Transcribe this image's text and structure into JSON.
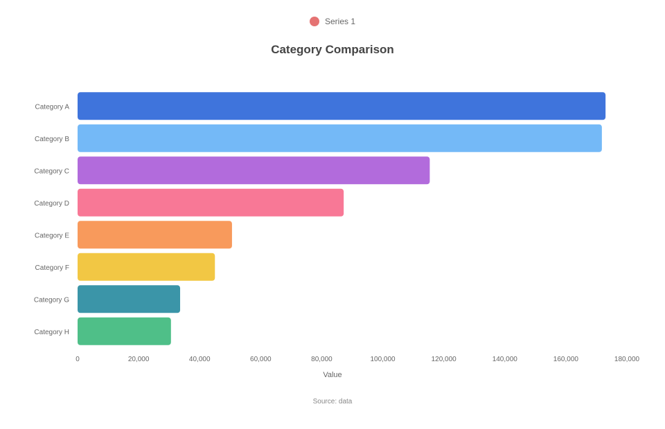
{
  "chart_data": {
    "type": "bar",
    "orientation": "horizontal",
    "title": "Category Comparison",
    "subtitle": "",
    "legend": {
      "label": "Series 1",
      "color": "#e57373",
      "position": "top"
    },
    "categories": [
      "Category A",
      "Category B",
      "Category C",
      "Category D",
      "Category E",
      "Category F",
      "Category G",
      "Category H"
    ],
    "values": [
      173000,
      171800,
      115400,
      87200,
      50600,
      45000,
      33600,
      30600
    ],
    "colors": [
      "#3f74dc",
      "#74b9f7",
      "#b26bdc",
      "#f87896",
      "#f89a5c",
      "#f2c744",
      "#3b95a8",
      "#4fbf88"
    ],
    "xlabel": "Value",
    "xlim": [
      0,
      180000
    ],
    "xticks": [
      "0",
      "20,000",
      "40,000",
      "60,000",
      "80,000",
      "100,000",
      "120,000",
      "140,000",
      "160,000",
      "180,000"
    ],
    "grid": false,
    "source": [
      "Source: data",
      ""
    ]
  }
}
